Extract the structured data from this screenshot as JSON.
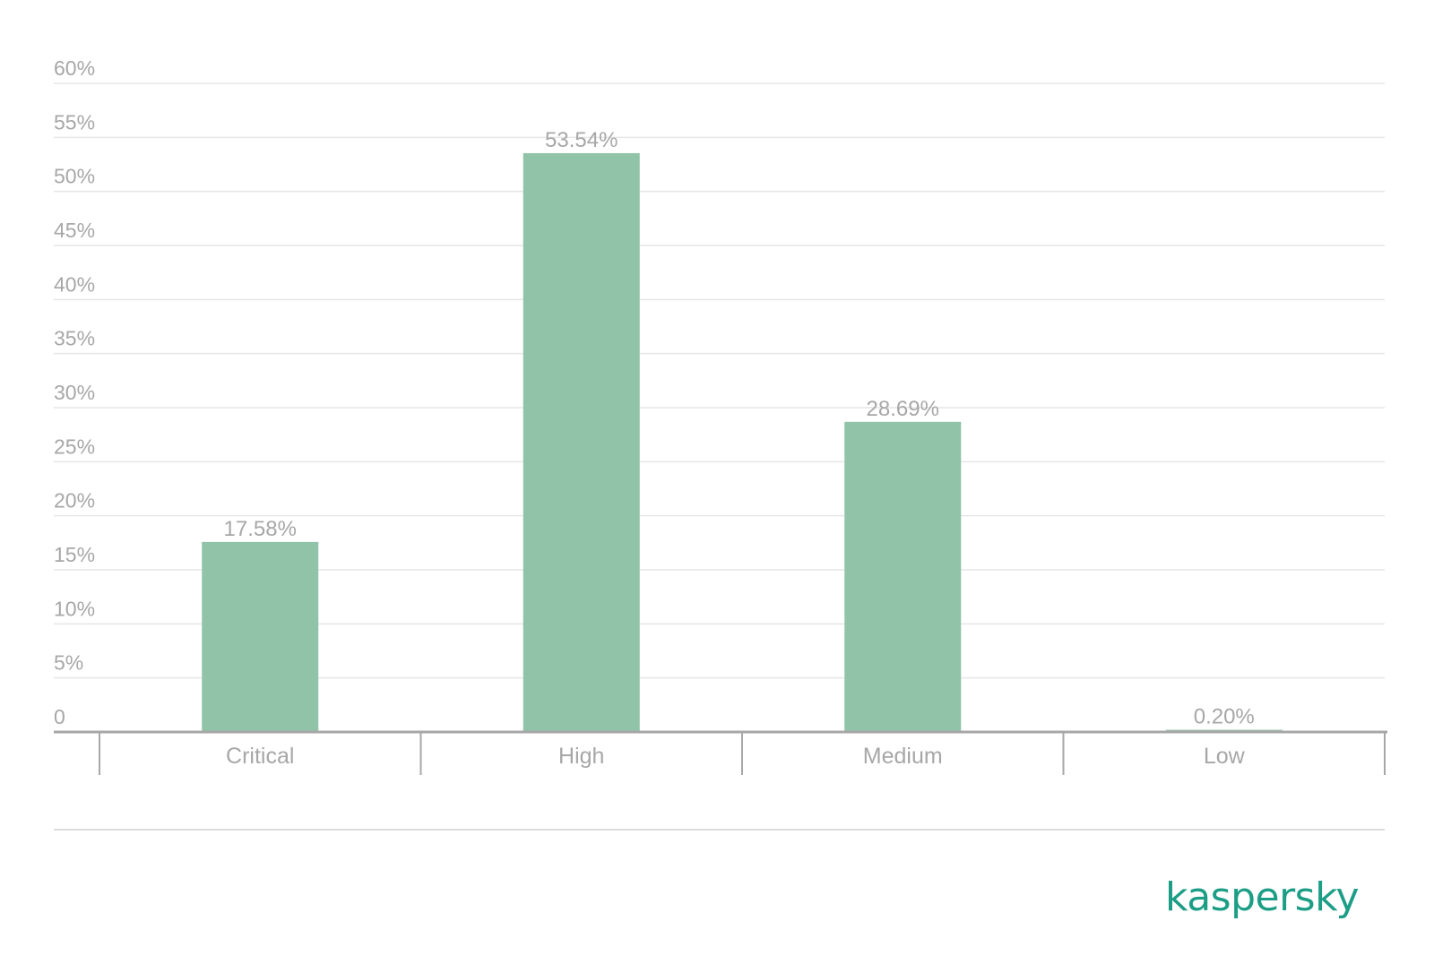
{
  "chart_data": {
    "type": "bar",
    "categories": [
      "Critical",
      "High",
      "Medium",
      "Low"
    ],
    "values": [
      17.58,
      53.54,
      28.69,
      0.2
    ],
    "data_labels": [
      "17.58%",
      "53.54%",
      "28.69%",
      "0.20%"
    ],
    "ylim": [
      0,
      60
    ],
    "yticks": [
      0,
      5,
      10,
      15,
      20,
      25,
      30,
      35,
      40,
      45,
      50,
      55,
      60
    ],
    "ytick_labels": [
      "0",
      "5%",
      "10%",
      "15%",
      "20%",
      "25%",
      "30%",
      "35%",
      "40%",
      "45%",
      "50%",
      "55%",
      "60%"
    ],
    "grid": true,
    "bar_color": "#90c3a7",
    "gridline_color": "#e6e6e6",
    "axis_color": "#a7a7a7",
    "title": "",
    "xlabel": "",
    "ylabel": ""
  },
  "branding": {
    "logo_text": "kaspersky",
    "logo_color": "#1c9e86"
  }
}
